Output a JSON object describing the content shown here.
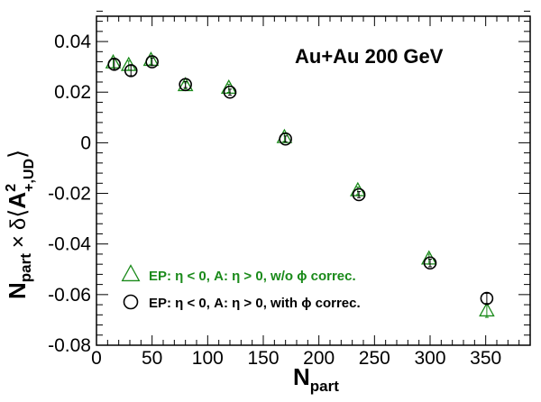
{
  "chart_data": {
    "type": "scatter",
    "annotation": "Au+Au 200 GeV",
    "xlabel": {
      "main": "N",
      "sub": "part"
    },
    "ylabel": {
      "n": "N",
      "n_sub": "part",
      "times": "×",
      "delta": "δ",
      "langle": "⟨",
      "a": "A",
      "a_sup": "2",
      "a_sub": "+,UD",
      "rangle": "⟩"
    },
    "xlim": [
      0,
      390
    ],
    "ylim": [
      -0.08,
      0.05
    ],
    "xticks": [
      0,
      50,
      100,
      150,
      200,
      250,
      300,
      350
    ],
    "xtick_labels": [
      "0",
      "50",
      "100",
      "150",
      "200",
      "250",
      "300",
      "350"
    ],
    "yticks": [
      -0.08,
      -0.06,
      -0.04,
      -0.02,
      0,
      0.02,
      0.04
    ],
    "ytick_labels": [
      "-0.08",
      "-0.06",
      "-0.04",
      "-0.02",
      "0",
      "0.02",
      "0.04"
    ],
    "grid": false,
    "legend_position": "bottom-right",
    "series": [
      {
        "name": "EP: η < 0, A: η > 0, w/o ϕ correc.",
        "marker": "open-triangle",
        "color": "#1a8a1a",
        "x": [
          15,
          29,
          49,
          80,
          119,
          169,
          235,
          299,
          351
        ],
        "y": [
          0.0315,
          0.0305,
          0.0325,
          0.0225,
          0.0215,
          0.002,
          -0.019,
          -0.046,
          -0.0665
        ],
        "err": [
          0.0018,
          0.0018,
          0.0015,
          0.0012,
          0.0016,
          0.0015,
          0.0015,
          0.002,
          0.0025
        ]
      },
      {
        "name": "EP: η < 0, A: η > 0, with ϕ correc.",
        "marker": "open-circle",
        "color": "#000000",
        "x": [
          16,
          31,
          50,
          80,
          120,
          170,
          236,
          300,
          351
        ],
        "y": [
          0.031,
          0.0285,
          0.032,
          0.023,
          0.02,
          0.0015,
          -0.0205,
          -0.0475,
          -0.0615
        ],
        "err": [
          0.002,
          0.002,
          0.0015,
          0.0012,
          0.0012,
          0.0012,
          0.0012,
          0.0015,
          0.002
        ]
      }
    ]
  }
}
